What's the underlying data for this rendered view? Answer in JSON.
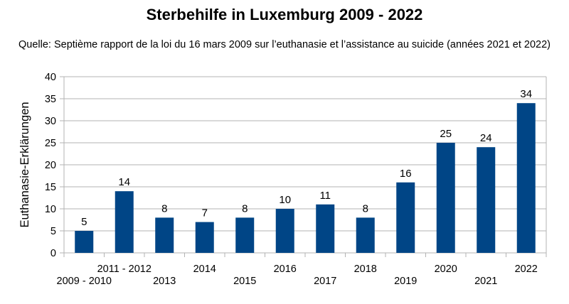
{
  "chart_data": {
    "type": "bar",
    "title": "Sterbehilfe in Luxemburg 2009 - 2022",
    "subtitle": "Quelle: Septième rapport de la loi du 16 mars 2009 sur l’euthanasie et l’assistance au suicide (années 2021 et 2022)",
    "xlabel": "",
    "ylabel": "Euthanasie-Erklärungen",
    "categories": [
      "2009 - 2010",
      "2011 - 2012",
      "2013",
      "2014",
      "2015",
      "2016",
      "2017",
      "2018",
      "2019",
      "2020",
      "2021",
      "2022"
    ],
    "values": [
      5,
      14,
      8,
      7,
      8,
      10,
      11,
      8,
      16,
      25,
      24,
      34
    ],
    "ylim": [
      0,
      40
    ],
    "yticks": [
      0,
      5,
      10,
      15,
      20,
      25,
      30,
      35,
      40
    ],
    "grid": true,
    "legend": "none",
    "colors": {
      "bar": "#004586",
      "grid": "#b3b3b3",
      "axis": "#b3b3b3"
    }
  }
}
